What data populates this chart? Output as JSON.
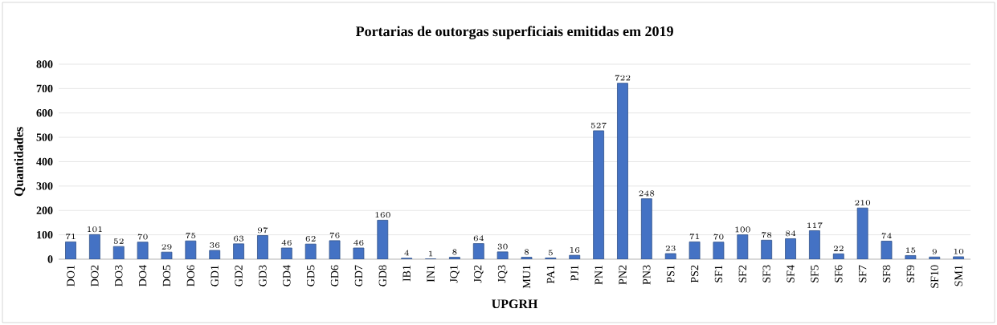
{
  "chart_data": {
    "type": "bar",
    "title": "Portarias de outorgas superficiais emitidas em 2019",
    "xlabel": "UPGRH",
    "ylabel": "Quantidades",
    "categories": [
      "DO1",
      "DO2",
      "DO3",
      "DO4",
      "DO5",
      "DO6",
      "GD1",
      "GD2",
      "GD3",
      "GD4",
      "GD5",
      "GD6",
      "GD7",
      "GD8",
      "IB1",
      "IN1",
      "JQ1",
      "JQ2",
      "JQ3",
      "MU1",
      "PA1",
      "PJ1",
      "PN1",
      "PN2",
      "PN3",
      "PS1",
      "PS2",
      "SF1",
      "SF2",
      "SF3",
      "SF4",
      "SF5",
      "SF6",
      "SF7",
      "SF8",
      "SF9",
      "SF10",
      "SM1"
    ],
    "values": [
      71,
      101,
      52,
      70,
      29,
      75,
      36,
      63,
      97,
      46,
      62,
      76,
      46,
      160,
      4,
      1,
      8,
      64,
      30,
      8,
      5,
      16,
      527,
      722,
      248,
      23,
      71,
      70,
      100,
      78,
      84,
      117,
      22,
      210,
      74,
      15,
      9,
      10
    ],
    "color": "#4472c4",
    "ylim": [
      0,
      800
    ],
    "yticks": [
      0,
      100,
      200,
      300,
      400,
      500,
      600,
      700,
      800
    ],
    "grid": "y",
    "data_labels": true
  }
}
